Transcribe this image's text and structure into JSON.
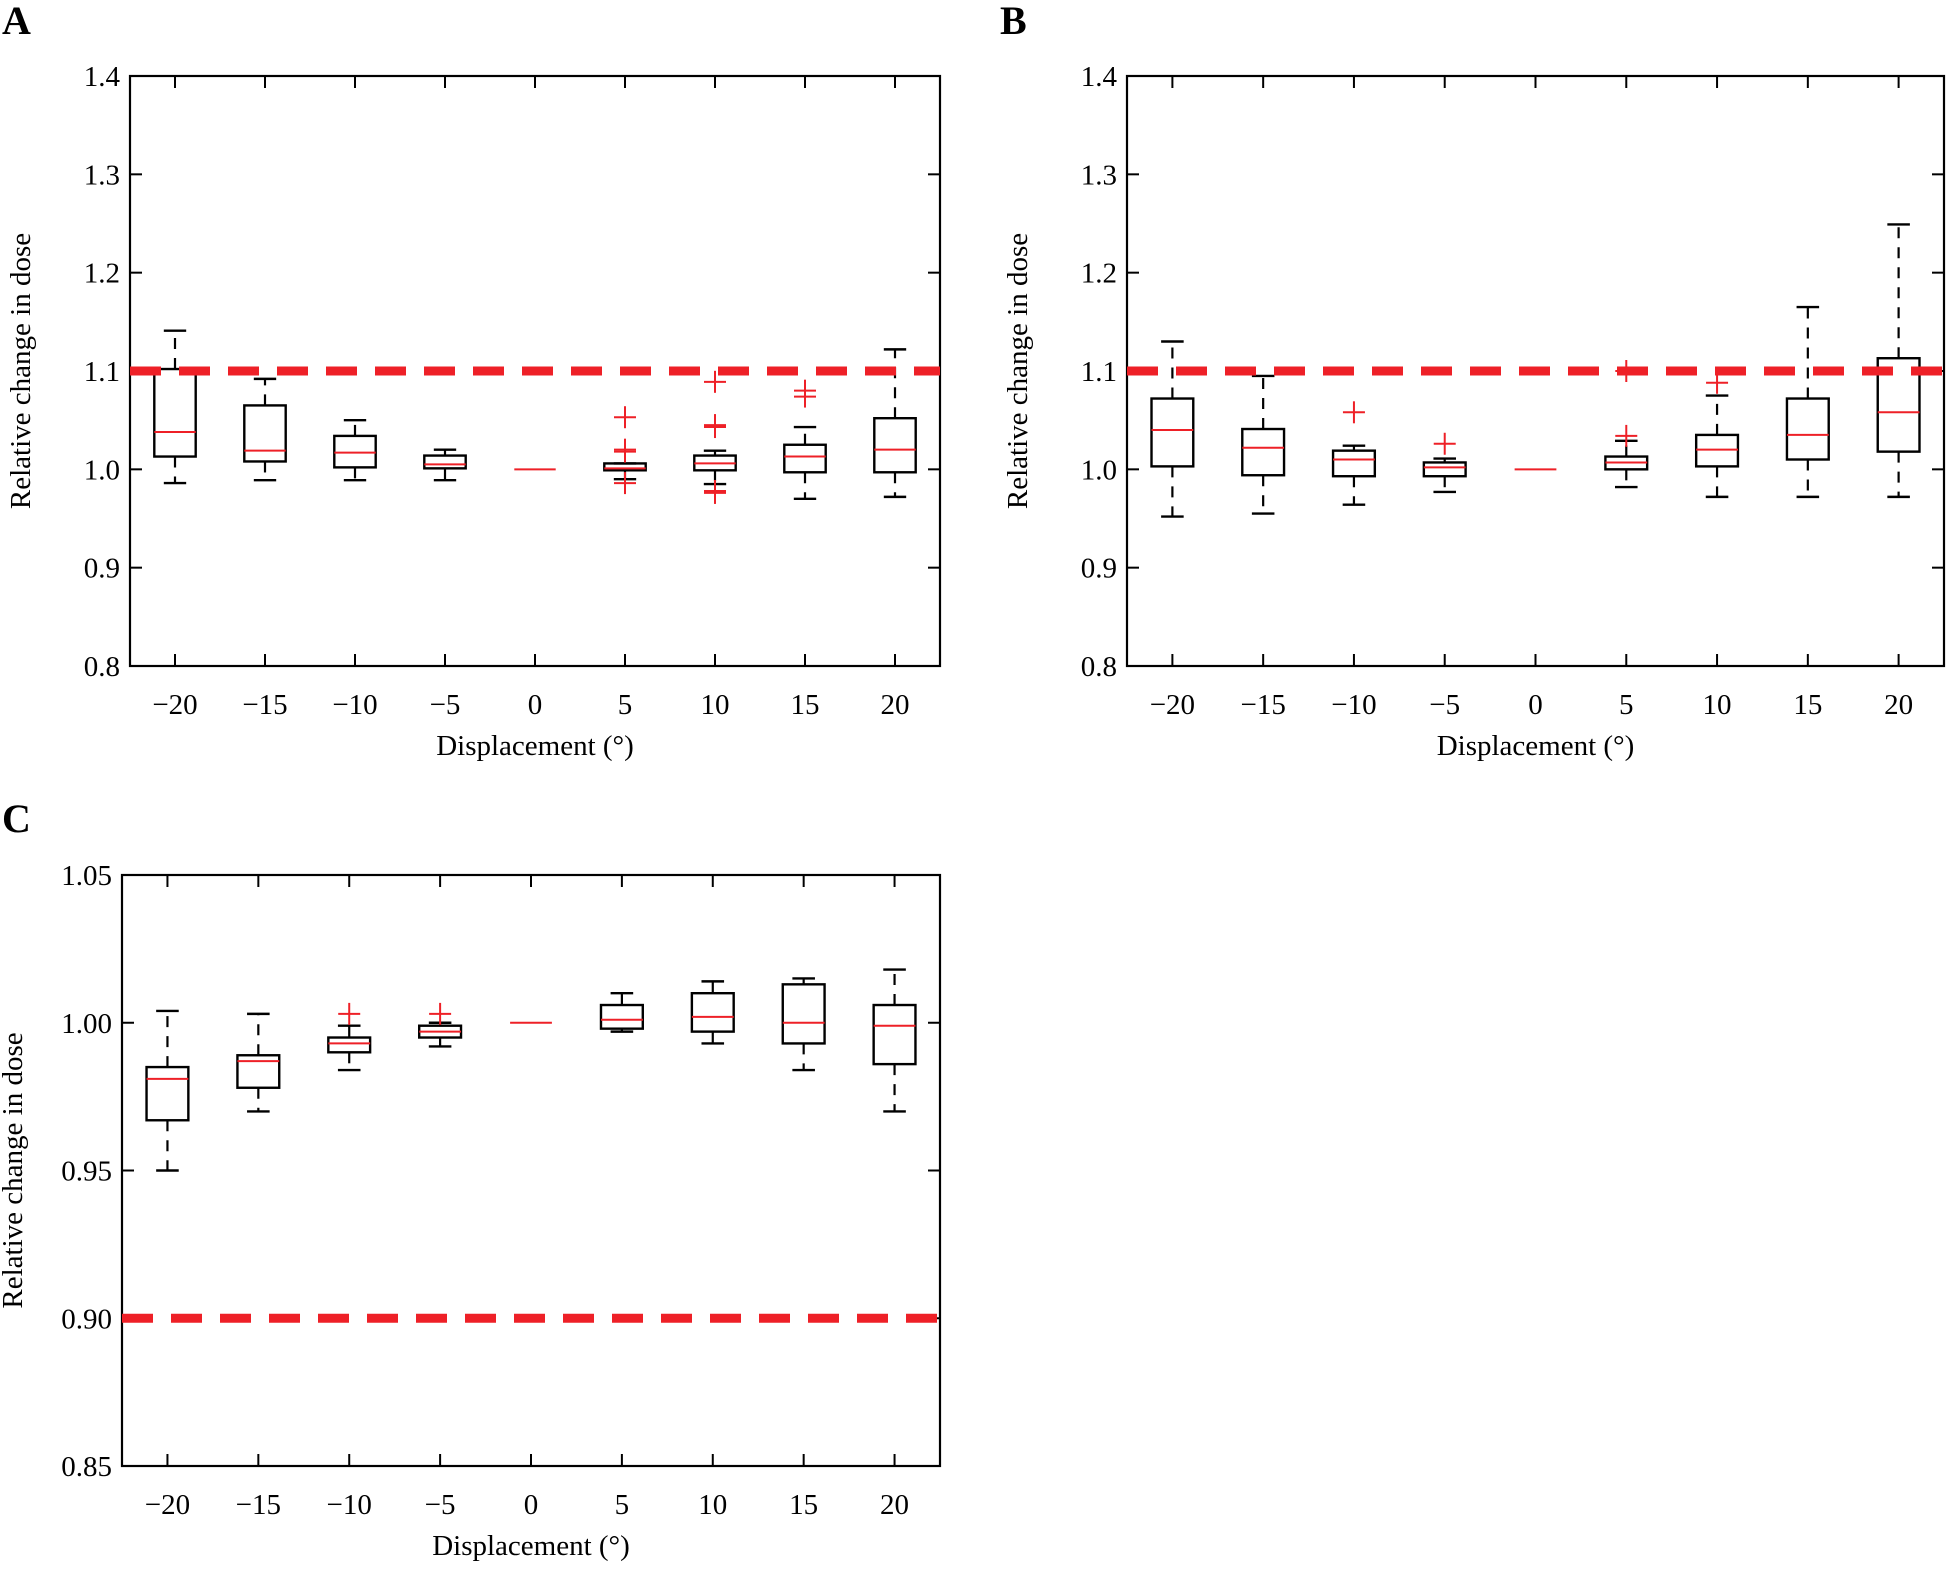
{
  "chart_data": [
    {
      "panel": "A",
      "type": "box",
      "xlabel": "Displacement (°)",
      "ylabel": "Relative change in dose",
      "ylim": [
        0.8,
        1.4
      ],
      "yticks": [
        "0.8",
        "0.9",
        "1.0",
        "1.1",
        "1.2",
        "1.3",
        "1.4"
      ],
      "ytick_values": [
        0.8,
        0.9,
        1.0,
        1.1,
        1.2,
        1.3,
        1.4
      ],
      "categories": [
        "−20",
        "−15",
        "−10",
        "−5",
        "0",
        "5",
        "10",
        "15",
        "20"
      ],
      "reference_line": {
        "value": 1.1,
        "color": "#ee2027",
        "style": "dashed"
      },
      "boxes": [
        {
          "whisker_low": 0.986,
          "q1": 1.013,
          "median": 1.038,
          "q3": 1.102,
          "whisker_high": 1.141,
          "outliers": []
        },
        {
          "whisker_low": 0.989,
          "q1": 1.008,
          "median": 1.019,
          "q3": 1.065,
          "whisker_high": 1.092,
          "outliers": []
        },
        {
          "whisker_low": 0.989,
          "q1": 1.002,
          "median": 1.017,
          "q3": 1.034,
          "whisker_high": 1.05,
          "outliers": []
        },
        {
          "whisker_low": 0.989,
          "q1": 1.001,
          "median": 1.005,
          "q3": 1.014,
          "whisker_high": 1.02,
          "outliers": []
        },
        {
          "whisker_low": 1.0,
          "q1": 1.0,
          "median": 1.0,
          "q3": 1.0,
          "whisker_high": 1.0,
          "outliers": []
        },
        {
          "whisker_low": 0.99,
          "q1": 0.999,
          "median": 1.001,
          "q3": 1.006,
          "whisker_high": 1.006,
          "outliers": [
            1.053,
            1.02,
            1.018,
            0.986
          ]
        },
        {
          "whisker_low": 0.985,
          "q1": 0.999,
          "median": 1.006,
          "q3": 1.014,
          "whisker_high": 1.019,
          "outliers": [
            1.089,
            1.045,
            1.043,
            0.978,
            0.976
          ]
        },
        {
          "whisker_low": 0.97,
          "q1": 0.997,
          "median": 1.013,
          "q3": 1.025,
          "whisker_high": 1.043,
          "outliers": [
            1.08,
            1.074
          ]
        },
        {
          "whisker_low": 0.972,
          "q1": 0.997,
          "median": 1.02,
          "q3": 1.052,
          "whisker_high": 1.122,
          "outliers": []
        }
      ]
    },
    {
      "panel": "B",
      "type": "box",
      "xlabel": "Displacement (°)",
      "ylabel": "Relative change in dose",
      "ylim": [
        0.8,
        1.4
      ],
      "yticks": [
        "0.8",
        "0.9",
        "1.0",
        "1.1",
        "1.2",
        "1.3",
        "1.4"
      ],
      "ytick_values": [
        0.8,
        0.9,
        1.0,
        1.1,
        1.2,
        1.3,
        1.4
      ],
      "categories": [
        "−20",
        "−15",
        "−10",
        "−5",
        "0",
        "5",
        "10",
        "15",
        "20"
      ],
      "reference_line": {
        "value": 1.1,
        "color": "#ee2027",
        "style": "dashed"
      },
      "boxes": [
        {
          "whisker_low": 0.952,
          "q1": 1.003,
          "median": 1.04,
          "q3": 1.072,
          "whisker_high": 1.13,
          "outliers": []
        },
        {
          "whisker_low": 0.955,
          "q1": 0.994,
          "median": 1.022,
          "q3": 1.041,
          "whisker_high": 1.095,
          "outliers": []
        },
        {
          "whisker_low": 0.964,
          "q1": 0.993,
          "median": 1.01,
          "q3": 1.019,
          "whisker_high": 1.024,
          "outliers": [
            1.058
          ]
        },
        {
          "whisker_low": 0.977,
          "q1": 0.993,
          "median": 1.002,
          "q3": 1.007,
          "whisker_high": 1.011,
          "outliers": [
            1.026
          ]
        },
        {
          "whisker_low": 1.0,
          "q1": 1.0,
          "median": 1.0,
          "q3": 1.0,
          "whisker_high": 1.0,
          "outliers": []
        },
        {
          "whisker_low": 0.982,
          "q1": 1.0,
          "median": 1.007,
          "q3": 1.013,
          "whisker_high": 1.029,
          "outliers": [
            1.1,
            1.034
          ]
        },
        {
          "whisker_low": 0.972,
          "q1": 1.003,
          "median": 1.02,
          "q3": 1.035,
          "whisker_high": 1.075,
          "outliers": [
            1.088
          ]
        },
        {
          "whisker_low": 0.972,
          "q1": 1.01,
          "median": 1.035,
          "q3": 1.072,
          "whisker_high": 1.165,
          "outliers": []
        },
        {
          "whisker_low": 0.972,
          "q1": 1.018,
          "median": 1.058,
          "q3": 1.113,
          "whisker_high": 1.249,
          "outliers": []
        }
      ]
    },
    {
      "panel": "C",
      "type": "box",
      "xlabel": "Displacement (°)",
      "ylabel": "Relative change in dose",
      "ylim": [
        0.85,
        1.05
      ],
      "yticks": [
        "0.85",
        "0.90",
        "0.95",
        "1.00",
        "1.05"
      ],
      "ytick_values": [
        0.85,
        0.9,
        0.95,
        1.0,
        1.05
      ],
      "categories": [
        "−20",
        "−15",
        "−10",
        "−5",
        "0",
        "5",
        "10",
        "15",
        "20"
      ],
      "reference_line": {
        "value": 0.9,
        "color": "#ee2027",
        "style": "dashed"
      },
      "boxes": [
        {
          "whisker_low": 0.95,
          "q1": 0.967,
          "median": 0.981,
          "q3": 0.985,
          "whisker_high": 1.004,
          "outliers": []
        },
        {
          "whisker_low": 0.97,
          "q1": 0.978,
          "median": 0.987,
          "q3": 0.989,
          "whisker_high": 1.003,
          "outliers": []
        },
        {
          "whisker_low": 0.984,
          "q1": 0.99,
          "median": 0.993,
          "q3": 0.995,
          "whisker_high": 0.999,
          "outliers": [
            1.003
          ]
        },
        {
          "whisker_low": 0.992,
          "q1": 0.995,
          "median": 0.997,
          "q3": 0.999,
          "whisker_high": 1.0,
          "outliers": [
            1.003
          ]
        },
        {
          "whisker_low": 1.0,
          "q1": 1.0,
          "median": 1.0,
          "q3": 1.0,
          "whisker_high": 1.0,
          "outliers": []
        },
        {
          "whisker_low": 0.997,
          "q1": 0.998,
          "median": 1.001,
          "q3": 1.006,
          "whisker_high": 1.01,
          "outliers": []
        },
        {
          "whisker_low": 0.993,
          "q1": 0.997,
          "median": 1.002,
          "q3": 1.01,
          "whisker_high": 1.014,
          "outliers": []
        },
        {
          "whisker_low": 0.984,
          "q1": 0.993,
          "median": 1.0,
          "q3": 1.013,
          "whisker_high": 1.015,
          "outliers": []
        },
        {
          "whisker_low": 0.97,
          "q1": 0.986,
          "median": 0.999,
          "q3": 1.006,
          "whisker_high": 1.018,
          "outliers": []
        }
      ]
    }
  ],
  "colors": {
    "median": "#ee2027",
    "outlier": "#ee2027",
    "reference": "#ee2027",
    "box": "#000000"
  }
}
